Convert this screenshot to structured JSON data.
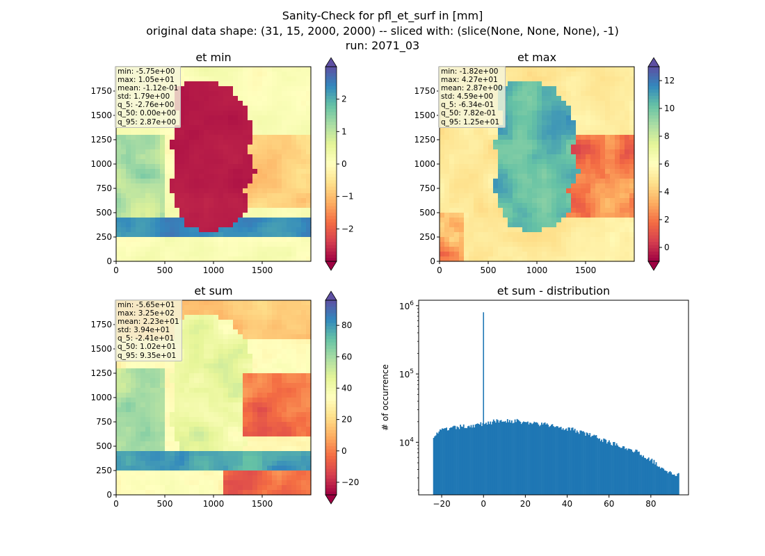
{
  "figure": {
    "title_lines": [
      "Sanity-Check for pfl_et_surf in [mm]",
      "original data shape: (31, 15, 2000, 2000) -- sliced with: (slice(None, None, None), -1)",
      "run: 2071_03"
    ]
  },
  "chart_data": [
    {
      "type": "heatmap",
      "title": "et min",
      "colormap": "Spectral",
      "x_ticks": [
        0,
        500,
        1000,
        1500
      ],
      "y_ticks": [
        0,
        250,
        500,
        750,
        1000,
        1250,
        1500,
        1750
      ],
      "xlim": [
        0,
        2000
      ],
      "ylim": [
        0,
        2000
      ],
      "colorbar": {
        "vmin": -3,
        "vmax": 3,
        "ticks": [
          -2,
          -1,
          0,
          1,
          2
        ],
        "tick_labels": [
          "−2",
          "−1",
          "0",
          "1",
          "2"
        ],
        "extend": "both"
      },
      "stats": [
        "min: -5.75e+00",
        "max: 1.05e+01",
        "mean: -1.12e-01",
        "std: 1.79e+00",
        "q_5: -2.76e+00",
        "q_50: 0.00e+00",
        "q_95: 2.87e+00"
      ]
    },
    {
      "type": "heatmap",
      "title": "et max",
      "colormap": "Spectral",
      "x_ticks": [
        0,
        500,
        1000,
        1500
      ],
      "y_ticks": [
        0,
        250,
        500,
        750,
        1000,
        1250,
        1500,
        1750
      ],
      "xlim": [
        0,
        2000
      ],
      "ylim": [
        0,
        2000
      ],
      "colorbar": {
        "vmin": -1,
        "vmax": 13,
        "ticks": [
          0,
          2,
          4,
          6,
          8,
          10,
          12
        ],
        "tick_labels": [
          "0",
          "2",
          "4",
          "6",
          "8",
          "10",
          "12"
        ],
        "extend": "both"
      },
      "stats": [
        "min: -1.82e+00",
        "max: 4.27e+01",
        "mean: 2.87e+00",
        "std: 4.59e+00",
        "q_5: -6.34e-01",
        "q_50: 7.82e-01",
        "q_95: 1.25e+01"
      ]
    },
    {
      "type": "heatmap",
      "title": "et sum",
      "colormap": "Spectral",
      "x_ticks": [
        0,
        500,
        1000,
        1500
      ],
      "y_ticks": [
        0,
        250,
        500,
        750,
        1000,
        1250,
        1500,
        1750
      ],
      "xlim": [
        0,
        2000
      ],
      "ylim": [
        0,
        2000
      ],
      "colorbar": {
        "vmin": -28,
        "vmax": 96,
        "ticks": [
          -20,
          0,
          20,
          40,
          60,
          80
        ],
        "tick_labels": [
          "−20",
          "0",
          "20",
          "40",
          "60",
          "80"
        ],
        "extend": "both"
      },
      "stats": [
        "min: -5.65e+01",
        "max: 3.25e+02",
        "mean: 2.23e+01",
        "std: 3.94e+01",
        "q_5: -2.41e+01",
        "q_50: 1.02e+01",
        "q_95: 9.35e+01"
      ]
    },
    {
      "type": "bar",
      "subtype": "histogram",
      "title": "et sum - distribution",
      "xlabel": "",
      "ylabel": "# of occurrence",
      "yscale": "log",
      "xlim": [
        -31,
        98
      ],
      "ylim": [
        1700,
        1200000
      ],
      "x_ticks": [
        -20,
        0,
        20,
        40,
        60,
        80
      ],
      "x_tick_labels": [
        "−20",
        "0",
        "20",
        "40",
        "60",
        "80"
      ],
      "y_ticks": [
        10000,
        100000,
        1000000
      ],
      "y_tick_labels": [
        [
          "10",
          "4"
        ],
        [
          "10",
          "5"
        ],
        [
          "10",
          "6"
        ]
      ],
      "color": "#1f77b4",
      "bin_range": [
        -24.1,
        93.5
      ],
      "peak": {
        "x": 0,
        "count": 800000
      },
      "envelope": [
        [
          -24,
          12500
        ],
        [
          -20,
          15000
        ],
        [
          -10,
          17000
        ],
        [
          -2,
          18000
        ],
        [
          0,
          19000
        ],
        [
          5,
          20000
        ],
        [
          10,
          21000
        ],
        [
          15,
          20500
        ],
        [
          20,
          19500
        ],
        [
          30,
          18000
        ],
        [
          40,
          16000
        ],
        [
          45,
          14500
        ],
        [
          50,
          13000
        ],
        [
          55,
          11500
        ],
        [
          60,
          10000
        ],
        [
          65,
          9000
        ],
        [
          70,
          8000
        ],
        [
          75,
          6800
        ],
        [
          80,
          5500
        ],
        [
          85,
          4300
        ],
        [
          90,
          3500
        ],
        [
          93.5,
          3300
        ]
      ]
    }
  ]
}
